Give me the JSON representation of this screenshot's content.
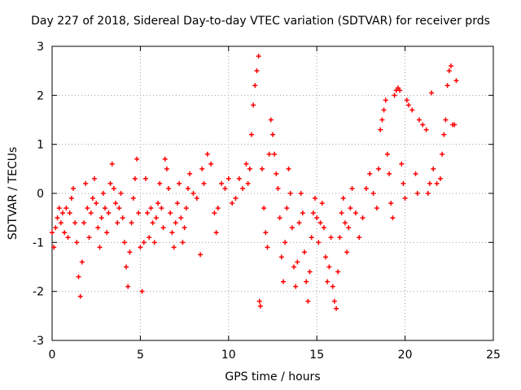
{
  "chart_data": {
    "type": "scatter",
    "title": "Day 227 of 2018, Sidereal Day-to-day VTEC variation (SDTVAR) for receiver prds",
    "xlabel": "GPS time / hours",
    "ylabel": "SDTVAR / TECUs",
    "xlim": [
      0,
      25
    ],
    "ylim": [
      -3,
      3
    ],
    "xticks": [
      0,
      5,
      10,
      15,
      20,
      25
    ],
    "yticks": [
      -3,
      -2,
      -1,
      0,
      1,
      2,
      3
    ],
    "xtick_labels": [
      "0",
      "5",
      "10",
      "15",
      "20",
      "25"
    ],
    "ytick_labels": [
      "-3",
      "-2",
      "-1",
      "0",
      "1",
      "2",
      "3"
    ],
    "grid": true,
    "marker": "+",
    "color": "#ff0000",
    "series": [
      {
        "name": "SDTVAR",
        "points": [
          [
            0.0,
            -0.8
          ],
          [
            0.1,
            -1.1
          ],
          [
            0.2,
            -0.7
          ],
          [
            0.3,
            -0.5
          ],
          [
            0.4,
            -0.3
          ],
          [
            0.5,
            -0.6
          ],
          [
            0.6,
            -0.4
          ],
          [
            0.7,
            -0.8
          ],
          [
            0.8,
            -0.3
          ],
          [
            0.9,
            -0.9
          ],
          [
            1.0,
            -0.4
          ],
          [
            1.1,
            -0.1
          ],
          [
            1.2,
            0.1
          ],
          [
            1.3,
            -0.6
          ],
          [
            1.4,
            -1.0
          ],
          [
            1.5,
            -1.7
          ],
          [
            1.6,
            -2.1
          ],
          [
            1.7,
            -1.4
          ],
          [
            1.8,
            -0.6
          ],
          [
            1.9,
            0.2
          ],
          [
            2.0,
            -0.3
          ],
          [
            2.1,
            -0.9
          ],
          [
            2.2,
            -0.4
          ],
          [
            2.3,
            -0.1
          ],
          [
            2.4,
            0.3
          ],
          [
            2.5,
            -0.2
          ],
          [
            2.6,
            -0.7
          ],
          [
            2.7,
            -1.1
          ],
          [
            2.8,
            -0.5
          ],
          [
            2.9,
            0.0
          ],
          [
            3.0,
            -0.3
          ],
          [
            3.1,
            -0.8
          ],
          [
            3.2,
            -0.4
          ],
          [
            3.3,
            0.2
          ],
          [
            3.4,
            0.6
          ],
          [
            3.5,
            0.1
          ],
          [
            3.6,
            -0.2
          ],
          [
            3.7,
            -0.6
          ],
          [
            3.8,
            -0.3
          ],
          [
            3.9,
            0.0
          ],
          [
            4.0,
            -0.5
          ],
          [
            4.1,
            -1.0
          ],
          [
            4.2,
            -1.5
          ],
          [
            4.3,
            -1.9
          ],
          [
            4.4,
            -1.2
          ],
          [
            4.5,
            -0.6
          ],
          [
            4.6,
            -0.1
          ],
          [
            4.7,
            0.3
          ],
          [
            4.8,
            0.7
          ],
          [
            4.9,
            -0.4
          ],
          [
            5.0,
            -1.1
          ],
          [
            5.1,
            -2.0
          ],
          [
            5.2,
            -1.0
          ],
          [
            5.3,
            0.3
          ],
          [
            5.4,
            -0.4
          ],
          [
            5.5,
            -0.9
          ],
          [
            5.6,
            -0.3
          ],
          [
            5.7,
            -0.6
          ],
          [
            5.8,
            -1.0
          ],
          [
            5.9,
            -0.5
          ],
          [
            6.0,
            -0.2
          ],
          [
            6.1,
            0.2
          ],
          [
            6.2,
            -0.3
          ],
          [
            6.3,
            -0.7
          ],
          [
            6.4,
            0.7
          ],
          [
            6.5,
            0.5
          ],
          [
            6.6,
            0.1
          ],
          [
            6.7,
            -0.4
          ],
          [
            6.8,
            -0.8
          ],
          [
            6.9,
            -1.1
          ],
          [
            7.0,
            -0.6
          ],
          [
            7.1,
            -0.2
          ],
          [
            7.2,
            0.2
          ],
          [
            7.3,
            -0.5
          ],
          [
            7.4,
            -1.0
          ],
          [
            7.5,
            -0.7
          ],
          [
            7.6,
            -0.3
          ],
          [
            7.7,
            0.1
          ],
          [
            7.8,
            0.4
          ],
          [
            8.0,
            0.0
          ],
          [
            8.2,
            -0.1
          ],
          [
            8.4,
            -1.25
          ],
          [
            8.5,
            0.5
          ],
          [
            8.6,
            0.2
          ],
          [
            8.8,
            0.8
          ],
          [
            9.0,
            0.6
          ],
          [
            9.2,
            -0.4
          ],
          [
            9.3,
            -0.8
          ],
          [
            9.4,
            -0.3
          ],
          [
            9.6,
            0.2
          ],
          [
            9.8,
            0.1
          ],
          [
            10.0,
            0.3
          ],
          [
            10.2,
            -0.2
          ],
          [
            10.4,
            -0.1
          ],
          [
            10.6,
            0.3
          ],
          [
            10.8,
            0.1
          ],
          [
            11.0,
            0.6
          ],
          [
            11.1,
            0.2
          ],
          [
            11.2,
            0.5
          ],
          [
            11.3,
            1.2
          ],
          [
            11.4,
            1.8
          ],
          [
            11.5,
            2.2
          ],
          [
            11.6,
            2.5
          ],
          [
            11.7,
            2.8
          ],
          [
            11.75,
            -2.2
          ],
          [
            11.8,
            -2.3
          ],
          [
            11.9,
            0.5
          ],
          [
            12.0,
            -0.3
          ],
          [
            12.1,
            -0.8
          ],
          [
            12.2,
            -1.1
          ],
          [
            12.3,
            0.8
          ],
          [
            12.4,
            1.5
          ],
          [
            12.5,
            1.2
          ],
          [
            12.6,
            0.8
          ],
          [
            12.7,
            0.4
          ],
          [
            12.8,
            0.1
          ],
          [
            12.9,
            -0.5
          ],
          [
            13.0,
            -1.3
          ],
          [
            13.1,
            -1.8
          ],
          [
            13.2,
            -1.0
          ],
          [
            13.3,
            -0.3
          ],
          [
            13.4,
            0.5
          ],
          [
            13.5,
            0.0
          ],
          [
            13.6,
            -0.7
          ],
          [
            13.7,
            -1.5
          ],
          [
            13.8,
            -1.9
          ],
          [
            13.9,
            -1.4
          ],
          [
            14.0,
            -0.6
          ],
          [
            14.1,
            0.0
          ],
          [
            14.2,
            -0.4
          ],
          [
            14.3,
            -1.2
          ],
          [
            14.4,
            -1.8
          ],
          [
            14.5,
            -2.2
          ],
          [
            14.6,
            -1.6
          ],
          [
            14.7,
            -0.9
          ],
          [
            14.8,
            -0.4
          ],
          [
            14.9,
            -0.1
          ],
          [
            15.0,
            -0.5
          ],
          [
            15.1,
            -1.0
          ],
          [
            15.2,
            -0.6
          ],
          [
            15.3,
            -0.2
          ],
          [
            15.4,
            -0.7
          ],
          [
            15.5,
            -1.3
          ],
          [
            15.6,
            -1.8
          ],
          [
            15.7,
            -1.5
          ],
          [
            15.8,
            -0.9
          ],
          [
            15.9,
            -1.9
          ],
          [
            16.0,
            -2.2
          ],
          [
            16.1,
            -2.35
          ],
          [
            16.2,
            -1.6
          ],
          [
            16.3,
            -0.9
          ],
          [
            16.4,
            -0.4
          ],
          [
            16.5,
            -0.1
          ],
          [
            16.6,
            -0.6
          ],
          [
            16.7,
            -1.2
          ],
          [
            16.8,
            -0.7
          ],
          [
            16.9,
            -0.3
          ],
          [
            17.0,
            0.1
          ],
          [
            17.2,
            -0.4
          ],
          [
            17.4,
            -0.9
          ],
          [
            17.6,
            -0.5
          ],
          [
            17.8,
            0.1
          ],
          [
            18.0,
            0.4
          ],
          [
            18.2,
            0.0
          ],
          [
            18.4,
            -0.3
          ],
          [
            18.5,
            0.5
          ],
          [
            18.6,
            1.3
          ],
          [
            18.7,
            1.5
          ],
          [
            18.8,
            1.7
          ],
          [
            18.9,
            1.9
          ],
          [
            19.0,
            0.8
          ],
          [
            19.1,
            0.4
          ],
          [
            19.2,
            -0.2
          ],
          [
            19.3,
            -0.5
          ],
          [
            19.4,
            2.0
          ],
          [
            19.5,
            2.1
          ],
          [
            19.6,
            2.15
          ],
          [
            19.7,
            2.1
          ],
          [
            19.8,
            0.6
          ],
          [
            19.9,
            0.2
          ],
          [
            20.0,
            -0.1
          ],
          [
            20.1,
            1.9
          ],
          [
            20.2,
            1.8
          ],
          [
            20.4,
            1.7
          ],
          [
            20.6,
            0.4
          ],
          [
            20.7,
            0.0
          ],
          [
            20.8,
            1.5
          ],
          [
            21.0,
            1.4
          ],
          [
            21.2,
            1.3
          ],
          [
            21.3,
            0.0
          ],
          [
            21.4,
            0.2
          ],
          [
            21.5,
            2.05
          ],
          [
            21.6,
            0.5
          ],
          [
            21.8,
            0.2
          ],
          [
            22.0,
            0.3
          ],
          [
            22.1,
            0.8
          ],
          [
            22.2,
            1.2
          ],
          [
            22.3,
            1.5
          ],
          [
            22.4,
            2.2
          ],
          [
            22.5,
            2.5
          ],
          [
            22.6,
            2.6
          ],
          [
            22.7,
            1.4
          ],
          [
            22.8,
            1.4
          ],
          [
            22.9,
            2.3
          ]
        ]
      }
    ]
  }
}
